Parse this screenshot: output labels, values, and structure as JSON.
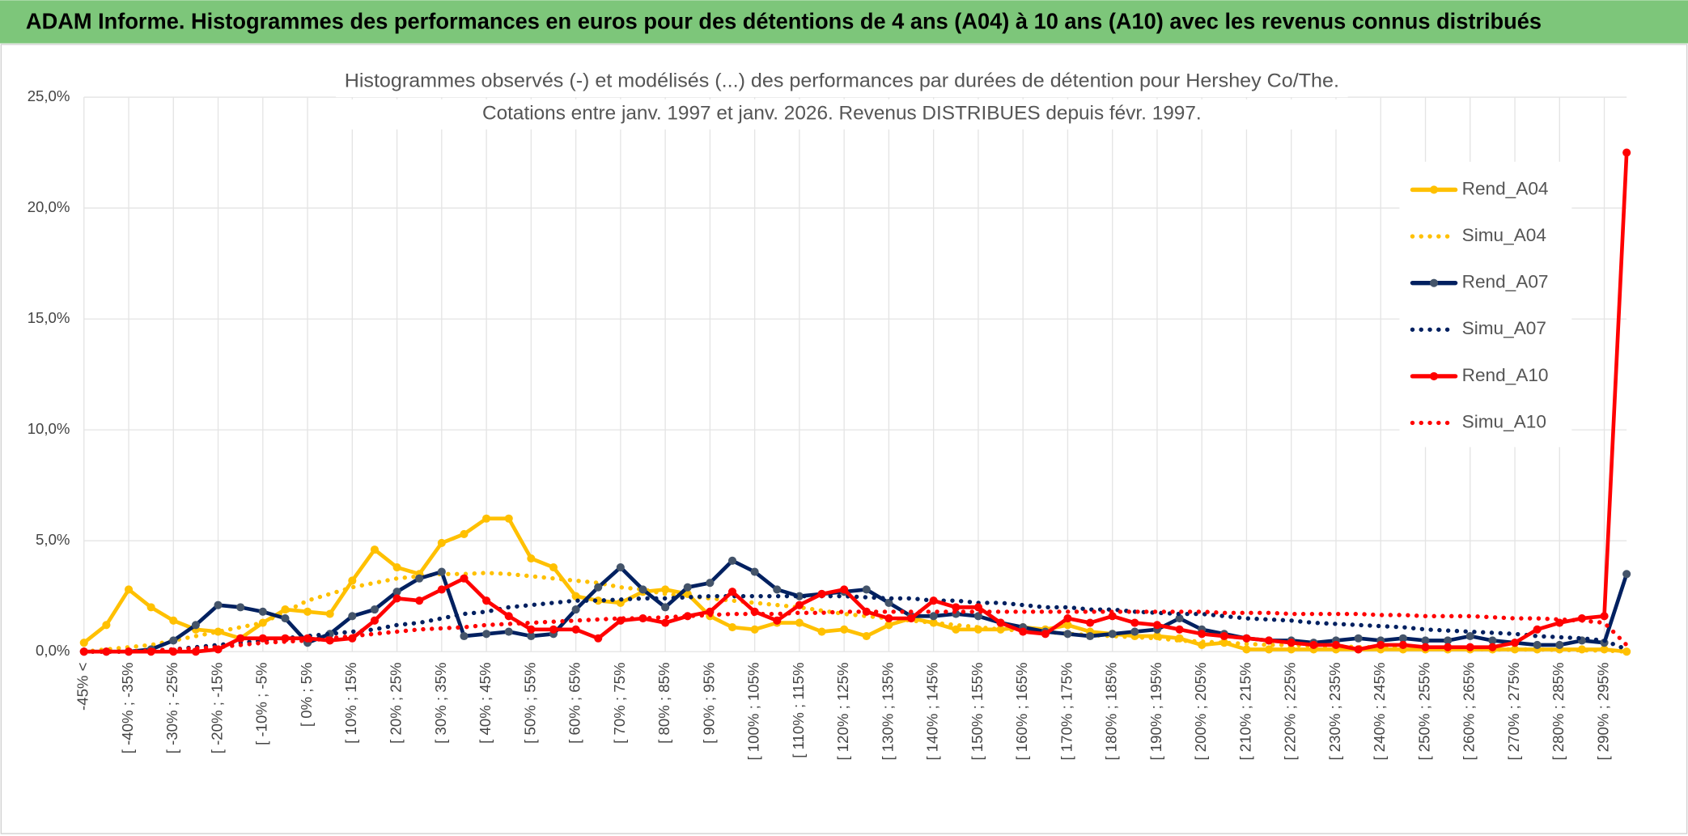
{
  "chart_data": {
    "type": "line",
    "header": "ADAM Informe. Histogrammes des performances en euros pour des détentions de 4 ans (A04) à 10 ans (A10) avec les revenus connus distribués",
    "title": [
      "Histogrammes observés (-) et modélisés (...) des performances par durées de détention pour Hershey Co/The.",
      "Cotations entre janv. 1997 et janv. 2026. Revenus DISTRIBUES depuis févr. 1997."
    ],
    "categories": [
      "-45% <",
      null,
      "[ -40% ; -35%",
      null,
      "[ -30% ; -25%",
      null,
      "[ -20% ; -15%",
      null,
      "[ -10% ; -5%",
      null,
      "[ 0% ; 5%",
      null,
      "[ 10% ; 15%",
      null,
      "[ 20% ; 25%",
      null,
      "[ 30% ; 35%",
      null,
      "[ 40% ; 45%",
      null,
      "[ 50% ; 55%",
      null,
      "[ 60% ; 65%",
      null,
      "[ 70% ; 75%",
      null,
      "[ 80% ; 85%",
      null,
      "[ 90% ; 95%",
      null,
      "[ 100% ; 105%",
      null,
      "[ 110% ; 115%",
      null,
      "[ 120% ; 125%",
      null,
      "[ 130% ; 135%",
      null,
      "[ 140% ; 145%",
      null,
      "[ 150% ; 155%",
      null,
      "[ 160% ; 165%",
      null,
      "[ 170% ; 175%",
      null,
      "[ 180% ; 185%",
      null,
      "[ 190% ; 195%",
      null,
      "[ 200% ; 205%",
      null,
      "[ 210% ; 215%",
      null,
      "[ 220% ; 225%",
      null,
      "[ 230% ; 235%",
      null,
      "[ 240% ; 245%",
      null,
      "[ 250% ; 255%",
      null,
      "[ 260% ; 265%",
      null,
      "[ 270% ; 275%",
      null,
      "[ 280% ; 285%",
      null,
      "[ 290% ; 295%",
      null
    ],
    "ylim": [
      0,
      25
    ],
    "yticks": [
      {
        "value": 0,
        "label": "0,0%"
      },
      {
        "value": 5,
        "label": "5,0%"
      },
      {
        "value": 10,
        "label": "10,0%"
      },
      {
        "value": 15,
        "label": "15,0%"
      },
      {
        "value": 20,
        "label": "20,0%"
      },
      {
        "value": 25,
        "label": "25,0%"
      }
    ],
    "grid": true,
    "legend": "right",
    "series": [
      {
        "name": "Rend_A04",
        "color": "#ffc000",
        "style": "solid",
        "values": [
          0.4,
          1.2,
          2.8,
          2.0,
          1.4,
          1.0,
          0.9,
          0.6,
          1.3,
          1.9,
          1.8,
          1.7,
          3.2,
          4.6,
          3.8,
          3.5,
          4.9,
          5.3,
          6.0,
          6.0,
          4.2,
          3.8,
          2.5,
          2.3,
          2.2,
          2.7,
          2.8,
          2.6,
          1.6,
          1.1,
          1.0,
          1.3,
          1.3,
          0.9,
          1.0,
          0.7,
          1.2,
          1.5,
          1.3,
          1.0,
          1.0,
          1.0,
          1.1,
          1.0,
          1.2,
          0.9,
          0.8,
          0.7,
          0.7,
          0.6,
          0.3,
          0.4,
          0.1,
          0.1,
          0.1,
          0.1,
          0.1,
          0.1,
          0.1,
          0.1,
          0.1,
          0.1,
          0.1,
          0.1,
          0.1,
          0.1,
          0.1,
          0.1,
          0.1,
          0.0
        ]
      },
      {
        "name": "Simu_A04",
        "color": "#ffc000",
        "style": "dotted",
        "values": [
          0.0,
          0.1,
          0.2,
          0.3,
          0.5,
          0.7,
          0.9,
          1.1,
          1.3,
          1.8,
          2.3,
          2.6,
          2.9,
          3.1,
          3.3,
          3.4,
          3.5,
          3.5,
          3.55,
          3.5,
          3.4,
          3.3,
          3.2,
          3.1,
          2.9,
          2.8,
          2.6,
          2.5,
          2.4,
          2.3,
          2.2,
          2.1,
          2.0,
          1.85,
          1.7,
          1.6,
          1.5,
          1.4,
          1.3,
          1.2,
          1.1,
          1.0,
          0.95,
          0.9,
          0.8,
          0.75,
          0.7,
          0.65,
          0.6,
          0.5,
          0.45,
          0.4,
          0.35,
          0.3,
          0.3,
          0.25,
          0.25,
          0.2,
          0.2,
          0.2,
          0.15,
          0.15,
          0.12,
          0.1,
          0.1,
          0.1,
          0.08,
          0.06,
          0.05,
          0.0
        ]
      },
      {
        "name": "Rend_A07",
        "color": "#002060",
        "style": "solid",
        "values": [
          0,
          0,
          0,
          0.1,
          0.5,
          1.2,
          2.1,
          2.0,
          1.8,
          1.5,
          0.4,
          0.8,
          1.6,
          1.9,
          2.7,
          3.3,
          3.6,
          0.7,
          0.8,
          0.9,
          0.7,
          0.8,
          1.9,
          2.9,
          3.8,
          2.8,
          2.0,
          2.9,
          3.1,
          4.1,
          3.6,
          2.8,
          2.5,
          2.6,
          2.7,
          2.8,
          2.2,
          1.6,
          1.6,
          1.7,
          1.6,
          1.3,
          1.1,
          0.9,
          0.8,
          0.7,
          0.8,
          0.9,
          1.0,
          1.5,
          1.0,
          0.8,
          0.6,
          0.5,
          0.5,
          0.4,
          0.5,
          0.6,
          0.5,
          0.6,
          0.5,
          0.5,
          0.7,
          0.5,
          0.4,
          0.3,
          0.3,
          0.5,
          0.4,
          3.5
        ]
      },
      {
        "name": "Simu_A07",
        "color": "#002060",
        "style": "dotted",
        "values": [
          0,
          0,
          0,
          0.05,
          0.1,
          0.2,
          0.3,
          0.4,
          0.5,
          0.6,
          0.7,
          0.8,
          0.9,
          1.0,
          1.2,
          1.3,
          1.5,
          1.7,
          1.8,
          2.0,
          2.1,
          2.2,
          2.3,
          2.3,
          2.35,
          2.4,
          2.4,
          2.45,
          2.5,
          2.5,
          2.5,
          2.5,
          2.5,
          2.5,
          2.5,
          2.45,
          2.4,
          2.4,
          2.3,
          2.3,
          2.2,
          2.2,
          2.1,
          2.0,
          2.0,
          1.9,
          1.9,
          1.8,
          1.75,
          1.7,
          1.7,
          1.6,
          1.5,
          1.45,
          1.4,
          1.3,
          1.25,
          1.2,
          1.15,
          1.1,
          1.0,
          0.95,
          0.9,
          0.85,
          0.8,
          0.7,
          0.65,
          0.6,
          0.5,
          0.1
        ]
      },
      {
        "name": "Rend_A10",
        "color": "#ff0000",
        "style": "solid",
        "values": [
          0,
          0,
          0,
          0,
          0,
          0,
          0.1,
          0.6,
          0.6,
          0.6,
          0.6,
          0.5,
          0.6,
          1.4,
          2.4,
          2.3,
          2.8,
          3.3,
          2.3,
          1.6,
          1.0,
          1.0,
          1.0,
          0.6,
          1.4,
          1.5,
          1.3,
          1.6,
          1.8,
          2.7,
          1.8,
          1.4,
          2.1,
          2.6,
          2.8,
          1.8,
          1.5,
          1.5,
          2.3,
          2.0,
          2.0,
          1.3,
          0.9,
          0.8,
          1.5,
          1.3,
          1.6,
          1.3,
          1.2,
          1.0,
          0.8,
          0.7,
          0.6,
          0.5,
          0.4,
          0.3,
          0.3,
          0.1,
          0.3,
          0.3,
          0.2,
          0.2,
          0.2,
          0.2,
          0.4,
          1.0,
          1.3,
          1.5,
          1.6,
          22.5
        ]
      },
      {
        "name": "Simu_A10",
        "color": "#ff0000",
        "style": "dotted",
        "values": [
          0,
          0,
          0,
          0.05,
          0.1,
          0.15,
          0.2,
          0.3,
          0.4,
          0.45,
          0.5,
          0.6,
          0.7,
          0.8,
          0.9,
          1.0,
          1.05,
          1.1,
          1.2,
          1.25,
          1.3,
          1.35,
          1.4,
          1.45,
          1.5,
          1.5,
          1.55,
          1.6,
          1.65,
          1.7,
          1.7,
          1.7,
          1.75,
          1.75,
          1.8,
          1.8,
          1.8,
          1.8,
          1.8,
          1.8,
          1.8,
          1.8,
          1.8,
          1.8,
          1.8,
          1.8,
          1.8,
          1.8,
          1.8,
          1.8,
          1.8,
          1.75,
          1.75,
          1.75,
          1.7,
          1.7,
          1.7,
          1.7,
          1.65,
          1.65,
          1.6,
          1.6,
          1.6,
          1.55,
          1.5,
          1.5,
          1.45,
          1.4,
          1.3,
          0.3
        ]
      }
    ]
  }
}
